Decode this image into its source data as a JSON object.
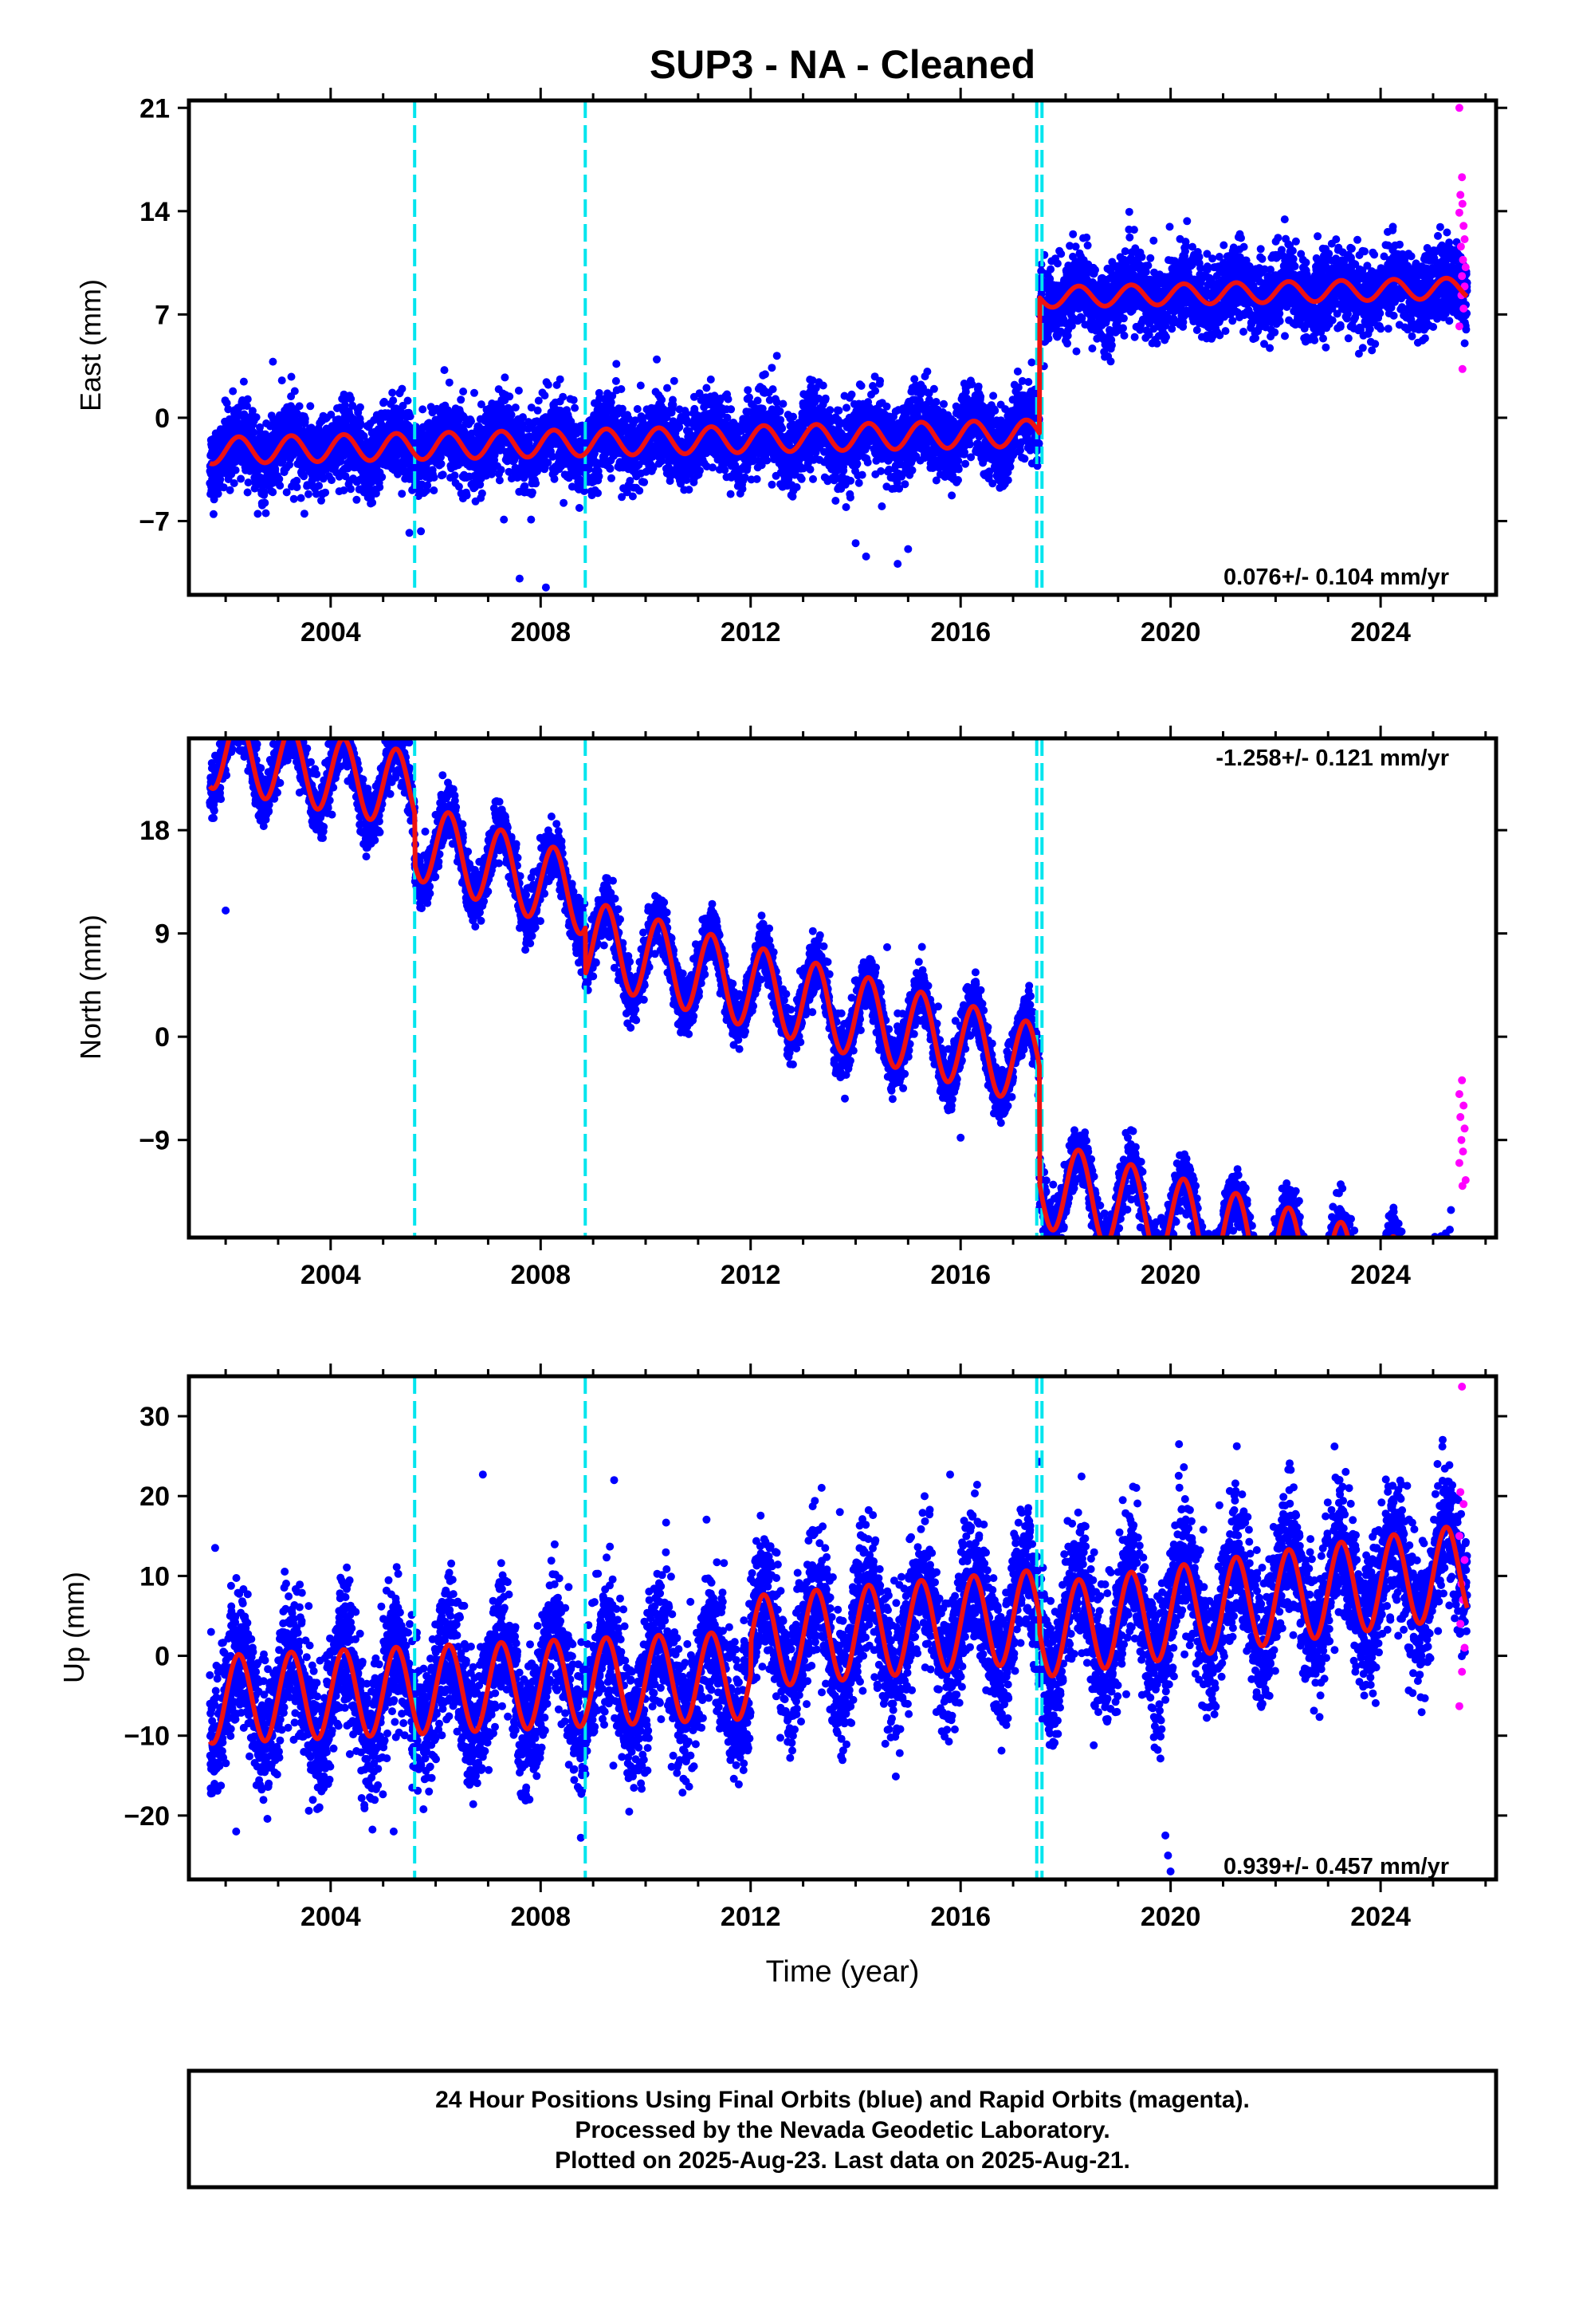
{
  "title": "SUP3  - NA - Cleaned",
  "colors": {
    "final_orbits": "#0000ff",
    "rapid_orbits": "#ff00ff",
    "model_fit": "#ee1111",
    "equipment_change": "#00e5ee",
    "frame": "#000000"
  },
  "chart_data": [
    {
      "type": "scatter",
      "component": "east",
      "ylabel": "East (mm)",
      "xlabel": "",
      "xlim": [
        2001.3,
        2026.2
      ],
      "ylim": [
        -12,
        21.5
      ],
      "yticks": [
        -7,
        0,
        7,
        14,
        21
      ],
      "xticks": [
        2004,
        2008,
        2012,
        2016,
        2020,
        2024
      ],
      "rate_label": "0.076+/- 0.104 mm/yr",
      "offsets_at": [
        2005.6,
        2008.85,
        2017.45,
        2017.55
      ],
      "model": {
        "segments": [
          {
            "from": 2001.7,
            "to": 2017.5,
            "intercept": -1.6,
            "slope": 0.076,
            "amplitude": 0.9
          },
          {
            "from": 2017.5,
            "to": 2025.65,
            "intercept": 7.6,
            "slope": 0.076,
            "amplitude": 0.7
          }
        ],
        "noise": 1.3
      },
      "outliers": [
        [
          2003.3,
          -5.5
        ],
        [
          2003.5,
          -6.5
        ],
        [
          2005.5,
          -7.8
        ],
        [
          2007.3,
          -6.9
        ],
        [
          2007.6,
          -10.9
        ],
        [
          2008.1,
          -11.5
        ],
        [
          2013.9,
          -5.4
        ],
        [
          2014.0,
          -8.5
        ],
        [
          2014.2,
          -9.4
        ],
        [
          2014.5,
          -6.0
        ],
        [
          2014.8,
          -9.9
        ],
        [
          2015.0,
          -8.9
        ],
        [
          2002.9,
          3.8
        ],
        [
          2012.5,
          4.2
        ],
        [
          2022.8,
          12.3
        ]
      ],
      "rapid": [
        [
          2025.5,
          21.0
        ],
        [
          2025.55,
          16.3
        ],
        [
          2025.52,
          15.1
        ],
        [
          2025.56,
          14.5
        ],
        [
          2025.5,
          13.9
        ],
        [
          2025.58,
          13.0
        ],
        [
          2025.6,
          12.1
        ],
        [
          2025.53,
          11.6
        ],
        [
          2025.57,
          10.7
        ],
        [
          2025.62,
          10.2
        ],
        [
          2025.55,
          9.6
        ],
        [
          2025.6,
          8.9
        ],
        [
          2025.54,
          8.3
        ],
        [
          2025.58,
          7.4
        ],
        [
          2025.5,
          6.2
        ],
        [
          2025.56,
          3.3
        ]
      ]
    },
    {
      "type": "scatter",
      "component": "north",
      "ylabel": "North (mm)",
      "xlabel": "",
      "xlim": [
        2001.3,
        2026.2
      ],
      "ylim": [
        -17.5,
        26
      ],
      "yticks": [
        -9,
        0,
        9,
        18
      ],
      "xticks": [
        2004,
        2008,
        2012,
        2016,
        2020,
        2024
      ],
      "rate_label": "-1.258+/- 0.121 mm/yr",
      "offsets_at": [
        2005.6,
        2008.85,
        2017.45,
        2017.55
      ],
      "model": {
        "segments": [
          {
            "from": 2001.7,
            "to": 2005.6,
            "intercept": 17.5,
            "slope": -0.9,
            "amplitude": 3.3
          },
          {
            "from": 2005.6,
            "to": 2008.85,
            "intercept": 10.5,
            "slope": -1.5,
            "amplitude": 3.4
          },
          {
            "from": 2008.85,
            "to": 2017.5,
            "intercept": 6.9,
            "slope": -1.258,
            "amplitude": 3.6
          },
          {
            "from": 2017.5,
            "to": 2025.65,
            "intercept": -3.3,
            "slope": -1.258,
            "amplitude": 3.8
          }
        ],
        "noise": 1.2
      },
      "outliers": [
        [
          2001.8,
          24.5
        ],
        [
          2002.6,
          25.5
        ],
        [
          2003.5,
          24.0
        ],
        [
          2002.0,
          11.0
        ],
        [
          2005.5,
          19.5
        ],
        [
          2014.6,
          7.8
        ],
        [
          2021.3,
          -15.7
        ],
        [
          2020.3,
          -15.5
        ],
        [
          2016.0,
          -8.8
        ]
      ],
      "rapid": [
        [
          2025.55,
          -3.8
        ],
        [
          2025.5,
          -5.0
        ],
        [
          2025.58,
          -6.0
        ],
        [
          2025.52,
          -7.0
        ],
        [
          2025.6,
          -8.0
        ],
        [
          2025.54,
          -9.0
        ],
        [
          2025.57,
          -10.0
        ],
        [
          2025.5,
          -11.0
        ],
        [
          2025.62,
          -12.5
        ],
        [
          2025.56,
          -13.0
        ]
      ]
    },
    {
      "type": "scatter",
      "component": "up",
      "ylabel": "Up (mm)",
      "xlabel": "Time (year)",
      "xlim": [
        2001.3,
        2026.2
      ],
      "ylim": [
        -28,
        35
      ],
      "yticks": [
        -20,
        -10,
        0,
        10,
        20,
        30
      ],
      "xticks": [
        2004,
        2008,
        2012,
        2016,
        2020,
        2024
      ],
      "rate_label": "0.939+/- 0.457 mm/yr",
      "offsets_at": [
        2005.6,
        2008.85,
        2017.45,
        2017.55
      ],
      "model": {
        "segments": [
          {
            "from": 2001.7,
            "to": 2012.0,
            "intercept": -3.0,
            "slope": 0.3,
            "amplitude": 5.5
          },
          {
            "from": 2012.0,
            "to": 2017.5,
            "intercept": 0.5,
            "slope": 0.6,
            "amplitude": 5.8
          },
          {
            "from": 2017.5,
            "to": 2025.65,
            "intercept": -4.0,
            "slope": 0.939,
            "amplitude": 5.8
          }
        ],
        "noise": 4.2
      },
      "outliers": [
        [
          2001.8,
          13.5
        ],
        [
          2002.2,
          -22.0
        ],
        [
          2005.2,
          -22.0
        ],
        [
          2006.9,
          22.7
        ],
        [
          2009.4,
          22.0
        ],
        [
          2013.7,
          18.0
        ],
        [
          2015.8,
          22.7
        ],
        [
          2017.5,
          24.3
        ],
        [
          2019.9,
          -22.5
        ],
        [
          2019.95,
          -25.0
        ],
        [
          2020.0,
          -27.0
        ],
        [
          2023.4,
          21.0
        ],
        [
          2025.3,
          21.8
        ]
      ],
      "rapid": [
        [
          2025.55,
          33.7
        ],
        [
          2025.52,
          20.5
        ],
        [
          2025.58,
          19.0
        ],
        [
          2025.5,
          15.0
        ],
        [
          2025.6,
          12.0
        ],
        [
          2025.54,
          9.0
        ],
        [
          2025.57,
          7.0
        ],
        [
          2025.52,
          4.0
        ],
        [
          2025.6,
          1.0
        ],
        [
          2025.55,
          -2.0
        ],
        [
          2025.5,
          -6.3
        ]
      ]
    }
  ],
  "footer": {
    "line1": "24 Hour Positions Using Final Orbits (blue) and Rapid Orbits (magenta).",
    "line2": "Processed by the Nevada Geodetic Laboratory.",
    "line3": "Plotted on 2025-Aug-23. Last data on 2025-Aug-21."
  }
}
